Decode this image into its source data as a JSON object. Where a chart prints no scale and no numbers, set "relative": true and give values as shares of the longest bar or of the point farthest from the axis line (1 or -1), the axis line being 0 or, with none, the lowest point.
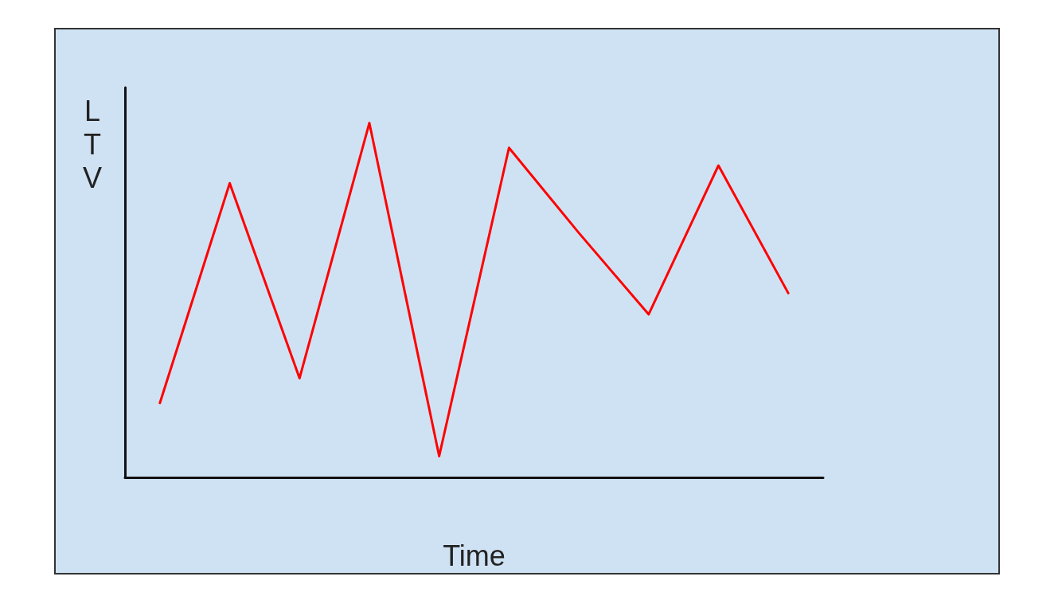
{
  "chart_data": {
    "type": "line",
    "xlabel": "Time",
    "ylabel": "LTV",
    "relative": true,
    "categories": [
      null,
      null,
      null,
      null,
      null,
      null,
      null,
      null,
      null,
      null
    ],
    "series": [
      {
        "color": "#ff0000",
        "values": [
          0.21,
          0.83,
          0.28,
          1,
          0.06,
          0.93,
          0.69,
          0.46,
          0.88,
          0.52
        ]
      }
    ],
    "grid": false,
    "marker": "none",
    "line_style": "solid"
  }
}
